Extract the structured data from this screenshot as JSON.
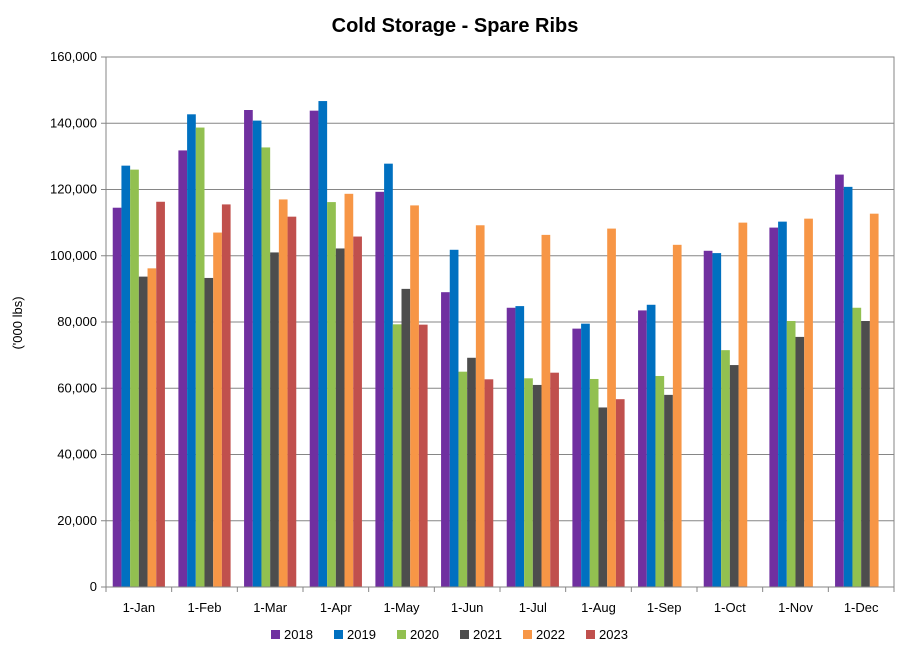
{
  "chart_data": {
    "type": "bar",
    "title": "Cold Storage - Spare Ribs",
    "xlabel": "",
    "ylabel": "('000 lbs)",
    "ylim": [
      0,
      160000
    ],
    "yticks": [
      0,
      20000,
      40000,
      60000,
      80000,
      100000,
      120000,
      140000,
      160000
    ],
    "ytick_labels": [
      "0",
      "20,000",
      "40,000",
      "60,000",
      "80,000",
      "100,000",
      "120,000",
      "140,000",
      "160,000"
    ],
    "grid": true,
    "legend_position": "bottom",
    "categories": [
      "1-Jan",
      "1-Feb",
      "1-Mar",
      "1-Apr",
      "1-May",
      "1-Jun",
      "1-Jul",
      "1-Aug",
      "1-Sep",
      "1-Oct",
      "1-Nov",
      "1-Dec"
    ],
    "series": [
      {
        "name": "2018",
        "color": "#7030A0",
        "values": [
          114500,
          131800,
          144000,
          143800,
          119300,
          89000,
          84300,
          78000,
          83500,
          101500,
          108500,
          124500
        ]
      },
      {
        "name": "2019",
        "color": "#0070C0",
        "values": [
          127200,
          142700,
          140800,
          146700,
          127800,
          101800,
          84800,
          79500,
          85200,
          100800,
          110300,
          120800
        ]
      },
      {
        "name": "2020",
        "color": "#92C050",
        "values": [
          126000,
          138700,
          132700,
          116200,
          79300,
          65000,
          63000,
          62800,
          63700,
          71500,
          80300,
          84300
        ]
      },
      {
        "name": "2021",
        "color": "#4D4D4D",
        "values": [
          93700,
          93300,
          101000,
          102200,
          90000,
          69200,
          61000,
          54200,
          58000,
          67000,
          75500,
          80300
        ]
      },
      {
        "name": "2022",
        "color": "#F79646",
        "values": [
          96200,
          107000,
          117000,
          118700,
          115200,
          109200,
          106300,
          108200,
          103300,
          110000,
          111200,
          112700
        ]
      },
      {
        "name": "2023",
        "color": "#C0504D",
        "values": [
          116300,
          115500,
          111800,
          105800,
          79200,
          62700,
          64700,
          56700,
          null,
          null,
          null,
          null
        ]
      }
    ]
  }
}
